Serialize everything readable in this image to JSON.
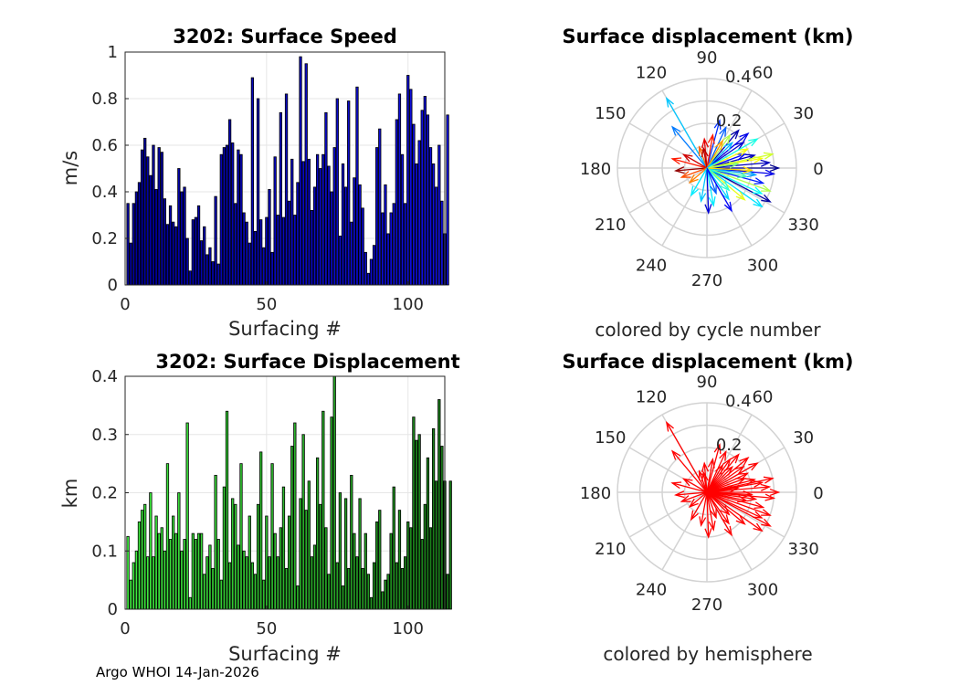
{
  "footer": "Argo WHOI 14-Jan-2026",
  "chart_data": [
    {
      "type": "bar",
      "title": "3202: Surface Speed",
      "xlabel": "Surfacing #",
      "ylabel": "m/s",
      "xlim": [
        0,
        113
      ],
      "ylim": [
        0,
        1
      ],
      "xticks": [
        "0",
        "50",
        "100"
      ],
      "yticks": [
        "0",
        "0.2",
        "0.4",
        "0.6",
        "0.8",
        "1"
      ],
      "bar_color_start": "#0000a0",
      "bar_color_end": "#1010e0",
      "values": [
        0.35,
        0.18,
        0.35,
        0.4,
        0.44,
        0.58,
        0.63,
        0.55,
        0.47,
        0.6,
        0.41,
        0.59,
        0.57,
        0.37,
        0.26,
        0.34,
        0.27,
        0.25,
        0.5,
        0.4,
        0.42,
        0.2,
        0.06,
        0.28,
        0.29,
        0.34,
        0.19,
        0.25,
        0.13,
        0.16,
        0.1,
        0.38,
        0.09,
        0.56,
        0.59,
        0.6,
        0.71,
        0.61,
        0.35,
        0.58,
        0.56,
        0.31,
        0.27,
        0.18,
        0.89,
        0.23,
        0.8,
        0.28,
        0.16,
        0.29,
        0.41,
        0.14,
        0.55,
        0.3,
        0.74,
        0.29,
        0.82,
        0.36,
        0.54,
        0.3,
        0.44,
        0.98,
        0.53,
        0.95,
        0.54,
        0.32,
        0.42,
        0.56,
        0.5,
        0.56,
        0.74,
        0.51,
        0.4,
        0.59,
        0.8,
        0.21,
        0.52,
        0.42,
        0.79,
        0.27,
        0.46,
        0.85,
        0.43,
        0.33,
        0.14,
        0.05,
        0.11,
        0.17,
        0.59,
        0.67,
        0.31,
        0.43,
        0.22,
        0.31,
        0.35,
        0.71,
        0.82,
        0.56,
        0.35,
        0.9,
        0.84,
        0.69,
        0.52,
        0.62,
        0.75,
        0.81,
        0.73,
        0.59,
        0.52,
        0.42,
        0.6,
        0.36,
        0.22,
        0.73
      ]
    },
    {
      "type": "bar",
      "title": "3202: Surface Displacement",
      "xlabel": "Surfacing #",
      "ylabel": "km",
      "xlim": [
        0,
        113
      ],
      "ylim": [
        0,
        0.4
      ],
      "xticks": [
        "0",
        "50",
        "100"
      ],
      "yticks": [
        "0",
        "0.1",
        "0.2",
        "0.3",
        "0.4"
      ],
      "bar_color_start": "#40f040",
      "bar_color_end": "#187818",
      "values": [
        0.125,
        0.05,
        0.08,
        0.1,
        0.15,
        0.17,
        0.18,
        0.09,
        0.2,
        0.09,
        0.16,
        0.13,
        0.14,
        0.1,
        0.25,
        0.12,
        0.16,
        0.13,
        0.2,
        0.1,
        0.12,
        0.32,
        0.02,
        0.13,
        0.12,
        0.13,
        0.13,
        0.06,
        0.09,
        0.11,
        0.07,
        0.23,
        0.12,
        0.05,
        0.21,
        0.34,
        0.08,
        0.19,
        0.18,
        0.11,
        0.25,
        0.1,
        0.09,
        0.16,
        0.08,
        0.06,
        0.18,
        0.27,
        0.05,
        0.16,
        0.09,
        0.25,
        0.13,
        0.09,
        0.14,
        0.21,
        0.07,
        0.16,
        0.28,
        0.32,
        0.04,
        0.19,
        0.3,
        0.17,
        0.22,
        0.09,
        0.11,
        0.26,
        0.18,
        0.34,
        0.14,
        0.06,
        0.33,
        0.4,
        0.08,
        0.2,
        0.04,
        0.19,
        0.07,
        0.23,
        0.13,
        0.09,
        0.19,
        0.07,
        0.13,
        0.06,
        0.02,
        0.08,
        0.15,
        0.17,
        0.03,
        0.05,
        0.06,
        0.13,
        0.21,
        0.08,
        0.17,
        0.07,
        0.09,
        0.15,
        0.14,
        0.33,
        0.29,
        0.3,
        0.12,
        0.18,
        0.26,
        0.14,
        0.31,
        0.22,
        0.36,
        0.28,
        0.22,
        0.06,
        0.22
      ]
    },
    {
      "type": "polar-compass",
      "title": "Surface displacement (km)",
      "caption": "colored by cycle number",
      "rlim": [
        0,
        0.4
      ],
      "rticks": [
        "0.2",
        "0.4"
      ],
      "angle_labels": [
        "0",
        "30",
        "60",
        "90",
        "120",
        "150",
        "180",
        "210",
        "240",
        "270",
        "300",
        "330"
      ],
      "color_scale": [
        "#00008f",
        "#0000ff",
        "#00a0ff",
        "#00ffff",
        "#80ff80",
        "#ffff00",
        "#ff8000",
        "#ff0000",
        "#800000"
      ],
      "vectors": [
        {
          "deg": 0,
          "r": 0.32,
          "c": 0
        },
        {
          "deg": 5,
          "r": 0.28,
          "c": 0.05
        },
        {
          "deg": 10,
          "r": 0.25,
          "c": 0.62
        },
        {
          "deg": -5,
          "r": 0.3,
          "c": 0.1
        },
        {
          "deg": -15,
          "r": 0.26,
          "c": 0.15
        },
        {
          "deg": -20,
          "r": 0.3,
          "c": 0.55
        },
        {
          "deg": -28,
          "r": 0.32,
          "c": 0.02
        },
        {
          "deg": -25,
          "r": 0.27,
          "c": 0.38
        },
        {
          "deg": -35,
          "r": 0.3,
          "c": 0.34
        },
        {
          "deg": -40,
          "r": 0.22,
          "c": 0.6
        },
        {
          "deg": -55,
          "r": 0.17,
          "c": 0.32
        },
        {
          "deg": -80,
          "r": 0.17,
          "c": 0.35
        },
        {
          "deg": -100,
          "r": 0.15,
          "c": 0.3
        },
        {
          "deg": -88,
          "r": 0.2,
          "c": 0.08
        },
        {
          "deg": -70,
          "r": 0.12,
          "c": 0.2
        },
        {
          "deg": 15,
          "r": 0.22,
          "c": 0.05
        },
        {
          "deg": 20,
          "r": 0.18,
          "c": 0.12
        },
        {
          "deg": 25,
          "r": 0.2,
          "c": 0.62
        },
        {
          "deg": 35,
          "r": 0.2,
          "c": 0.07
        },
        {
          "deg": 40,
          "r": 0.24,
          "c": 0.1
        },
        {
          "deg": 50,
          "r": 0.22,
          "c": 0.03
        },
        {
          "deg": 55,
          "r": 0.18,
          "c": 0.55
        },
        {
          "deg": 65,
          "r": 0.2,
          "c": 0.2
        },
        {
          "deg": 75,
          "r": 0.22,
          "c": 0.16
        },
        {
          "deg": 80,
          "r": 0.15,
          "c": 0.85
        },
        {
          "deg": 95,
          "r": 0.13,
          "c": 0.9
        },
        {
          "deg": 120,
          "r": 0.36,
          "c": 0.3
        },
        {
          "deg": 130,
          "r": 0.24,
          "c": 0.22
        },
        {
          "deg": 150,
          "r": 0.12,
          "c": 0.92
        },
        {
          "deg": 165,
          "r": 0.16,
          "c": 0.85
        },
        {
          "deg": 185,
          "r": 0.14,
          "c": 0.98
        },
        {
          "deg": 200,
          "r": 0.12,
          "c": 0.8
        },
        {
          "deg": 220,
          "r": 0.1,
          "c": 0.75
        },
        {
          "deg": 240,
          "r": 0.14,
          "c": 0.35
        },
        {
          "deg": -12,
          "r": 0.18,
          "c": 0.45
        },
        {
          "deg": 8,
          "r": 0.14,
          "c": 0.5
        },
        {
          "deg": -8,
          "r": 0.22,
          "c": 0.25
        },
        {
          "deg": 30,
          "r": 0.26,
          "c": 0.4
        },
        {
          "deg": 12,
          "r": 0.3,
          "c": 0.58
        },
        {
          "deg": -3,
          "r": 0.2,
          "c": 0.66
        },
        {
          "deg": 60,
          "r": 0.14,
          "c": 0.72
        },
        {
          "deg": 110,
          "r": 0.1,
          "c": 0.78
        },
        {
          "deg": 100,
          "r": 0.09,
          "c": 0.95
        },
        {
          "deg": -45,
          "r": 0.14,
          "c": 0.42
        },
        {
          "deg": -60,
          "r": 0.22,
          "c": 0.12
        },
        {
          "deg": 45,
          "r": 0.16,
          "c": 0.28
        }
      ]
    },
    {
      "type": "polar-compass",
      "title": "Surface displacement (km)",
      "caption": "colored by hemisphere",
      "rlim": [
        0,
        0.4
      ],
      "rticks": [
        "0.2",
        "0.4"
      ],
      "angle_labels": [
        "0",
        "30",
        "60",
        "90",
        "120",
        "150",
        "180",
        "210",
        "240",
        "270",
        "300",
        "330"
      ],
      "vector_color": "#ff0000",
      "vectors": [
        {
          "deg": 0,
          "r": 0.32
        },
        {
          "deg": 5,
          "r": 0.28
        },
        {
          "deg": 10,
          "r": 0.25
        },
        {
          "deg": -5,
          "r": 0.3
        },
        {
          "deg": -15,
          "r": 0.26
        },
        {
          "deg": -20,
          "r": 0.3
        },
        {
          "deg": -28,
          "r": 0.32
        },
        {
          "deg": -25,
          "r": 0.27
        },
        {
          "deg": -35,
          "r": 0.3
        },
        {
          "deg": -40,
          "r": 0.22
        },
        {
          "deg": -55,
          "r": 0.17
        },
        {
          "deg": -80,
          "r": 0.17
        },
        {
          "deg": -100,
          "r": 0.15
        },
        {
          "deg": -88,
          "r": 0.2
        },
        {
          "deg": -70,
          "r": 0.12
        },
        {
          "deg": 15,
          "r": 0.22
        },
        {
          "deg": 20,
          "r": 0.18
        },
        {
          "deg": 25,
          "r": 0.2
        },
        {
          "deg": 35,
          "r": 0.2
        },
        {
          "deg": 40,
          "r": 0.24
        },
        {
          "deg": 50,
          "r": 0.22
        },
        {
          "deg": 55,
          "r": 0.18
        },
        {
          "deg": 65,
          "r": 0.2
        },
        {
          "deg": 75,
          "r": 0.22
        },
        {
          "deg": 80,
          "r": 0.15
        },
        {
          "deg": 95,
          "r": 0.13
        },
        {
          "deg": 120,
          "r": 0.36
        },
        {
          "deg": 130,
          "r": 0.24
        },
        {
          "deg": 150,
          "r": 0.12
        },
        {
          "deg": 165,
          "r": 0.16
        },
        {
          "deg": 185,
          "r": 0.14
        },
        {
          "deg": 200,
          "r": 0.12
        },
        {
          "deg": 220,
          "r": 0.1
        },
        {
          "deg": 240,
          "r": 0.14
        },
        {
          "deg": -12,
          "r": 0.18
        },
        {
          "deg": 8,
          "r": 0.14
        },
        {
          "deg": -8,
          "r": 0.22
        },
        {
          "deg": 30,
          "r": 0.26
        },
        {
          "deg": 12,
          "r": 0.3
        },
        {
          "deg": -3,
          "r": 0.2
        },
        {
          "deg": 60,
          "r": 0.14
        },
        {
          "deg": 110,
          "r": 0.1
        },
        {
          "deg": 100,
          "r": 0.09
        },
        {
          "deg": -45,
          "r": 0.14
        },
        {
          "deg": -60,
          "r": 0.22
        },
        {
          "deg": 45,
          "r": 0.16
        }
      ]
    }
  ]
}
